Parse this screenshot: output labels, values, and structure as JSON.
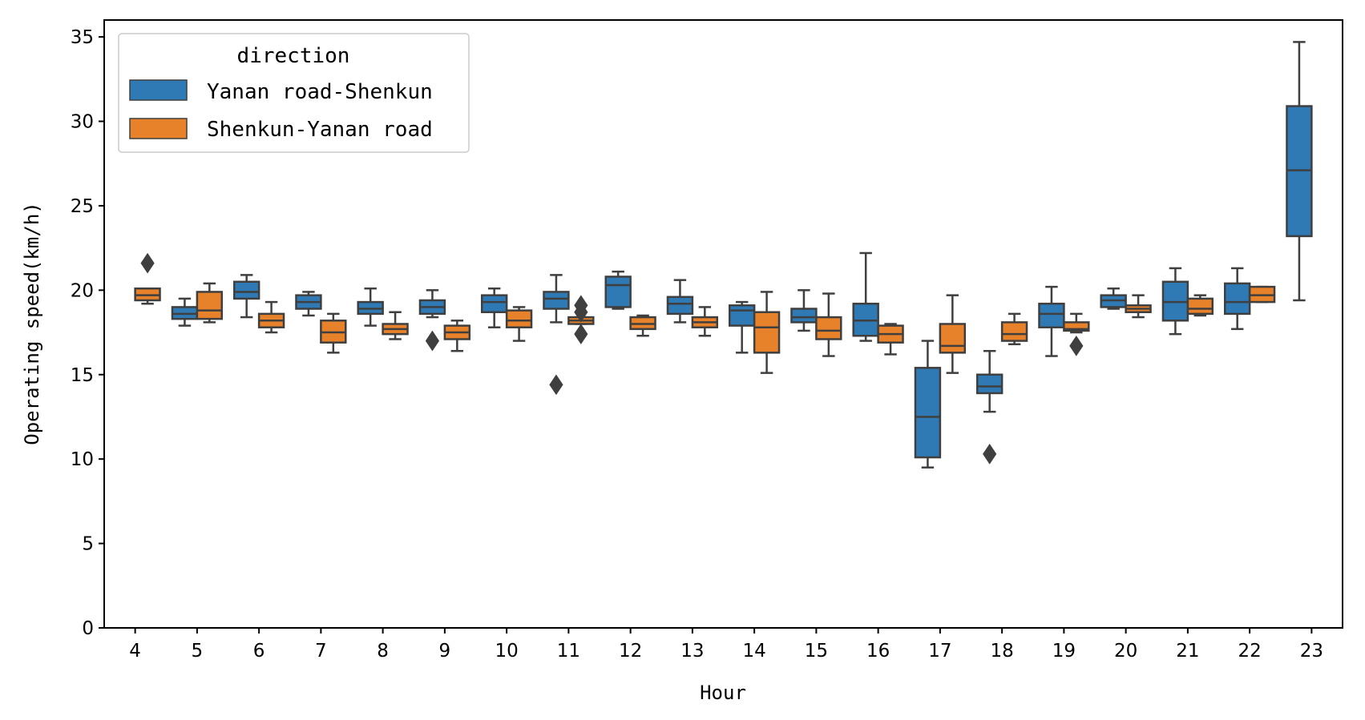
{
  "chart_data": {
    "type": "box",
    "title": "",
    "xlabel": "Hour",
    "ylabel": "Operating speed(km/h)",
    "ylim": [
      0,
      36
    ],
    "yticks": [
      0,
      5,
      10,
      15,
      20,
      25,
      30,
      35
    ],
    "categories": [
      "4",
      "5",
      "6",
      "7",
      "8",
      "9",
      "10",
      "11",
      "12",
      "13",
      "14",
      "15",
      "16",
      "17",
      "18",
      "19",
      "20",
      "21",
      "22",
      "23"
    ],
    "grid": false,
    "legend": {
      "title": "direction",
      "position": "top-left"
    },
    "series": [
      {
        "name": "Yanan road-Shenkun",
        "color": "#2f7ab5",
        "boxes": [
          null,
          {
            "whislo": 17.9,
            "q1": 18.3,
            "med": 18.6,
            "q3": 19.0,
            "whishi": 19.5,
            "fliers": []
          },
          {
            "whislo": 18.4,
            "q1": 19.5,
            "med": 19.9,
            "q3": 20.5,
            "whishi": 20.9,
            "fliers": []
          },
          {
            "whislo": 18.5,
            "q1": 18.9,
            "med": 19.3,
            "q3": 19.7,
            "whishi": 19.9,
            "fliers": []
          },
          {
            "whislo": 17.9,
            "q1": 18.6,
            "med": 18.9,
            "q3": 19.3,
            "whishi": 20.1,
            "fliers": []
          },
          {
            "whislo": 18.4,
            "q1": 18.6,
            "med": 19.0,
            "q3": 19.4,
            "whishi": 20.0,
            "fliers": [
              17.0
            ]
          },
          {
            "whislo": 17.8,
            "q1": 18.7,
            "med": 19.3,
            "q3": 19.7,
            "whishi": 20.1,
            "fliers": []
          },
          {
            "whislo": 18.1,
            "q1": 18.9,
            "med": 19.5,
            "q3": 19.9,
            "whishi": 20.9,
            "fliers": [
              14.4
            ]
          },
          {
            "whislo": 18.9,
            "q1": 19.0,
            "med": 20.3,
            "q3": 20.8,
            "whishi": 21.1,
            "fliers": []
          },
          {
            "whislo": 18.1,
            "q1": 18.6,
            "med": 19.2,
            "q3": 19.6,
            "whishi": 20.6,
            "fliers": []
          },
          {
            "whislo": 16.3,
            "q1": 17.9,
            "med": 18.8,
            "q3": 19.1,
            "whishi": 19.3,
            "fliers": []
          },
          {
            "whislo": 17.6,
            "q1": 18.1,
            "med": 18.4,
            "q3": 18.9,
            "whishi": 20.0,
            "fliers": []
          },
          {
            "whislo": 17.0,
            "q1": 17.3,
            "med": 18.2,
            "q3": 19.2,
            "whishi": 22.2,
            "fliers": []
          },
          {
            "whislo": 9.5,
            "q1": 10.1,
            "med": 12.5,
            "q3": 15.4,
            "whishi": 17.0,
            "fliers": []
          },
          {
            "whislo": 12.8,
            "q1": 13.9,
            "med": 14.3,
            "q3": 15.0,
            "whishi": 16.4,
            "fliers": [
              10.3
            ]
          },
          {
            "whislo": 16.1,
            "q1": 17.8,
            "med": 18.6,
            "q3": 19.2,
            "whishi": 20.2,
            "fliers": []
          },
          {
            "whislo": 18.9,
            "q1": 19.0,
            "med": 19.4,
            "q3": 19.7,
            "whishi": 20.1,
            "fliers": []
          },
          {
            "whislo": 17.4,
            "q1": 18.2,
            "med": 19.3,
            "q3": 20.5,
            "whishi": 21.3,
            "fliers": []
          },
          {
            "whislo": 17.7,
            "q1": 18.6,
            "med": 19.3,
            "q3": 20.4,
            "whishi": 21.3,
            "fliers": []
          },
          {
            "whislo": 19.4,
            "q1": 23.2,
            "med": 27.1,
            "q3": 30.9,
            "whishi": 34.7,
            "fliers": []
          }
        ]
      },
      {
        "name": "Shenkun-Yanan road",
        "color": "#e8822a",
        "boxes": [
          {
            "whislo": 19.2,
            "q1": 19.4,
            "med": 19.7,
            "q3": 20.1,
            "whishi": 20.1,
            "fliers": [
              21.6
            ]
          },
          {
            "whislo": 18.1,
            "q1": 18.3,
            "med": 18.8,
            "q3": 19.9,
            "whishi": 20.4,
            "fliers": []
          },
          {
            "whislo": 17.5,
            "q1": 17.8,
            "med": 18.2,
            "q3": 18.6,
            "whishi": 19.3,
            "fliers": []
          },
          {
            "whislo": 16.3,
            "q1": 16.9,
            "med": 17.5,
            "q3": 18.2,
            "whishi": 18.6,
            "fliers": []
          },
          {
            "whislo": 17.1,
            "q1": 17.4,
            "med": 17.7,
            "q3": 18.0,
            "whishi": 18.7,
            "fliers": []
          },
          {
            "whislo": 16.4,
            "q1": 17.1,
            "med": 17.5,
            "q3": 17.9,
            "whishi": 18.2,
            "fliers": []
          },
          {
            "whislo": 17.0,
            "q1": 17.8,
            "med": 18.2,
            "q3": 18.8,
            "whishi": 19.0,
            "fliers": []
          },
          {
            "whislo": 18.0,
            "q1": 18.0,
            "med": 18.2,
            "q3": 18.4,
            "whishi": 18.4,
            "fliers": [
              19.1,
              18.7,
              17.4
            ]
          },
          {
            "whislo": 17.3,
            "q1": 17.7,
            "med": 18.0,
            "q3": 18.4,
            "whishi": 18.5,
            "fliers": []
          },
          {
            "whislo": 17.3,
            "q1": 17.8,
            "med": 18.1,
            "q3": 18.4,
            "whishi": 19.0,
            "fliers": []
          },
          {
            "whislo": 15.1,
            "q1": 16.3,
            "med": 17.8,
            "q3": 18.7,
            "whishi": 19.9,
            "fliers": []
          },
          {
            "whislo": 16.1,
            "q1": 17.1,
            "med": 17.6,
            "q3": 18.4,
            "whishi": 19.8,
            "fliers": []
          },
          {
            "whislo": 16.2,
            "q1": 16.9,
            "med": 17.4,
            "q3": 17.9,
            "whishi": 18.0,
            "fliers": []
          },
          {
            "whislo": 15.1,
            "q1": 16.3,
            "med": 16.7,
            "q3": 18.0,
            "whishi": 19.7,
            "fliers": []
          },
          {
            "whislo": 16.8,
            "q1": 17.0,
            "med": 17.4,
            "q3": 18.1,
            "whishi": 18.6,
            "fliers": []
          },
          {
            "whislo": 17.5,
            "q1": 17.6,
            "med": 17.7,
            "q3": 18.1,
            "whishi": 18.6,
            "fliers": [
              16.7
            ]
          },
          {
            "whislo": 18.4,
            "q1": 18.7,
            "med": 18.9,
            "q3": 19.1,
            "whishi": 19.7,
            "fliers": []
          },
          {
            "whislo": 18.5,
            "q1": 18.6,
            "med": 18.9,
            "q3": 19.5,
            "whishi": 19.7,
            "fliers": []
          },
          {
            "whislo": 19.3,
            "q1": 19.3,
            "med": 19.7,
            "q3": 20.2,
            "whishi": 20.2,
            "fliers": []
          },
          null
        ]
      }
    ]
  }
}
